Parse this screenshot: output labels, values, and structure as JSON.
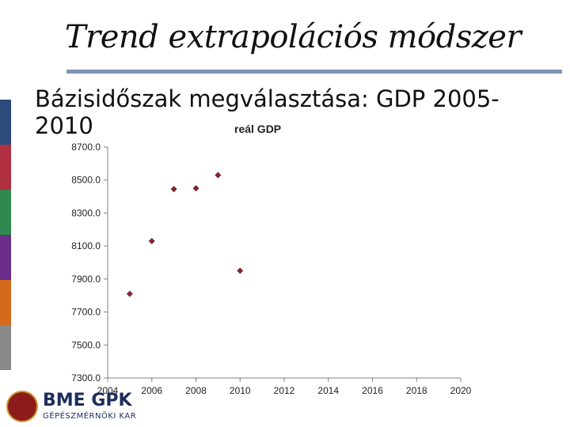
{
  "slide": {
    "title": "Trend extrapolációs módszer",
    "subtitle": "Bázisidőszak megválasztása: GDP 2005-2010",
    "accent_rule_color": "#7f93b5",
    "strip_colors": [
      "#2c4a7a",
      "#b03040",
      "#2e8a4e",
      "#6a2d8a",
      "#d36a1c",
      "#888888"
    ]
  },
  "logo": {
    "name": "BME GPK",
    "sub": "GÉPÉSZMÉRNÖKI KAR"
  },
  "chart_data": {
    "type": "scatter",
    "title": "reál GDP",
    "xlabel": "",
    "ylabel": "",
    "x": [
      2005,
      2006,
      2007,
      2008,
      2009,
      2010
    ],
    "y": [
      7810,
      8130,
      8445,
      8450,
      8530,
      7950
    ],
    "xlim": [
      2004,
      2020
    ],
    "ylim": [
      7300,
      8700
    ],
    "x_ticks": [
      2004,
      2006,
      2008,
      2010,
      2012,
      2014,
      2016,
      2018,
      2020
    ],
    "y_ticks": [
      "8700.0",
      "8500.0",
      "8300.0",
      "8100.0",
      "7900.0",
      "7700.0",
      "7500.0",
      "7300.0"
    ],
    "grid": false,
    "legend": "none",
    "marker_color": "#8e2430"
  }
}
